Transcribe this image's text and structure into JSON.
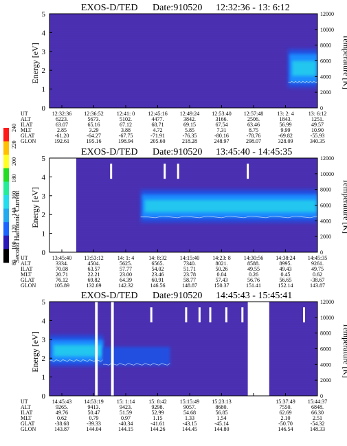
{
  "colors": {
    "background": "#4a2fb0",
    "mid_blue": "#2050e0",
    "bright_blue": "#1a8cff",
    "cyan": "#22c6ee",
    "trace": "#d8e4f0"
  },
  "colorbar": {
    "label": "Second Harmonic Current",
    "ticks": [
      "240",
      "220",
      "200",
      "180",
      "160",
      "140",
      "120",
      "100",
      "80"
    ],
    "colors": [
      "#ff1a1a",
      "#ffc000",
      "#ffff22",
      "#22dd22",
      "#22ee99",
      "#22ddee",
      "#22aaee",
      "#1a66ff",
      "#2a1ab8",
      "#000000"
    ]
  },
  "panels": [
    {
      "title": "EXOS-D/TED",
      "date": "Date:910520",
      "range": "12:32:36 - 13: 6:12",
      "ylabel": "Energy [eV]",
      "y2label": "Temperature [K]",
      "yticks": [
        "0",
        "1",
        "2",
        "3",
        "4",
        "5"
      ],
      "y2ticks": [
        "0",
        "2000",
        "4000",
        "6000",
        "8000",
        "10000",
        "12000"
      ],
      "rows": {
        "ut": [
          "12:32:36",
          "12:36:52",
          "12:41: 0",
          "12:45:16",
          "12:49:24",
          "12:53:40",
          "12:57:48",
          "13: 2: 4",
          "13: 6:12"
        ],
        "alt": [
          "6223.",
          "5673.",
          "5102.",
          "4477.",
          "3842.",
          "3166.",
          "2506.",
          "1843.",
          "1251."
        ],
        "ilat": [
          "63.07",
          "65.16",
          "67.12",
          "68.71",
          "69.15",
          "67.54",
          "63.46",
          "56.99",
          "49.57"
        ],
        "mlt": [
          "2.85",
          "3.29",
          "3.88",
          "4.72",
          "5.85",
          "7.31",
          "8.75",
          "9.99",
          "10.90"
        ],
        "glat": [
          "-61.20",
          "-64.27",
          "-67.75",
          "-71.91",
          "-76.35",
          "-80.16",
          "-78.76",
          "-69.82",
          "-55.93"
        ],
        "glon": [
          "192.61",
          "195.16",
          "198.94",
          "205.60",
          "218.28",
          "248.97",
          "298.07",
          "328.09",
          "340.35"
        ]
      }
    },
    {
      "title": "EXOS-D/TED",
      "date": "Date:910520",
      "range": "13:45:40 - 14:45:35",
      "ylabel": "Energy [eV]",
      "y2label": "Temperature [K]",
      "yticks": [
        "0",
        "1",
        "2",
        "3",
        "4",
        "5"
      ],
      "y2ticks": [
        "0",
        "2000",
        "4000",
        "6000",
        "8000",
        "10000",
        "12000"
      ],
      "rows": {
        "ut": [
          "13:45:40",
          "13:53:12",
          "14: 1: 4",
          "14: 8:32",
          "14:15:40",
          "14:23: 8",
          "14:30:56",
          "14:38:24",
          "14:45:35"
        ],
        "alt": [
          "3334.",
          "4504.",
          "5625.",
          "6565.",
          "7340.",
          "8021.",
          "8588.",
          "8995.",
          "9261."
        ],
        "ilat": [
          "70.08",
          "63.57",
          "57.77",
          "54.02",
          "51.71",
          "50.26",
          "49.55",
          "49.43",
          "49.75"
        ],
        "mlt": [
          "20.71",
          "22.21",
          "23.00",
          "23.46",
          "23.78",
          "0.04",
          "0.26",
          "0.45",
          "0.62"
        ],
        "glat": [
          "76.12",
          "69.82",
          "64.39",
          "60.91",
          "58.77",
          "57.43",
          "56.76",
          "56.65",
          "-38.67"
        ],
        "glon": [
          "105.89",
          "132.69",
          "142.32",
          "146.56",
          "148.87",
          "150.37",
          "151.41",
          "152.14",
          "143.87"
        ]
      }
    },
    {
      "title": "EXOS-D/TED",
      "date": "Date:910520",
      "range": "14:45:43 - 15:45:41",
      "ylabel": "Energy [eV]",
      "y2label": "Temperature [K]",
      "yticks": [
        "0",
        "1",
        "2",
        "3",
        "4",
        "5"
      ],
      "y2ticks": [
        "0",
        "2000",
        "4000",
        "6000",
        "8000",
        "10000",
        "12000"
      ],
      "rows": {
        "ut": [
          "14:45:43",
          "14:53:19",
          "15: 1:14",
          "15: 8:42",
          "15:15:49",
          "15:23:13",
          "",
          "15:37:49",
          "15:44:37"
        ],
        "alt": [
          "9265.",
          "9413.",
          "9423.",
          "9298.",
          "9057.",
          "8680.",
          "",
          "7550.",
          "6848."
        ],
        "ilat": [
          "49.76",
          "50.47",
          "51.59",
          "52.99",
          "54.68",
          "56.85",
          "",
          "62.69",
          "66.30"
        ],
        "mlt": [
          "0.62",
          "0.79",
          "0.97",
          "1.15",
          "1.33",
          "1.54",
          "",
          "2.10",
          "2.51"
        ],
        "glat": [
          "-38.68",
          "-39.33",
          "-40.34",
          "-41.61",
          "-43.15",
          "-45.14",
          "",
          "-50.70",
          "-54.32"
        ],
        "glon": [
          "143.87",
          "144.04",
          "144.15",
          "144.26",
          "144.45",
          "144.80",
          "",
          "146.54",
          "148.33"
        ]
      }
    }
  ],
  "row_labels": [
    "UT",
    "ALT",
    "ILAT",
    "MLT",
    "GLAT",
    "GLON"
  ],
  "chart_data": [
    {
      "type": "heatmap",
      "title": "EXOS-D/TED Date:910520 12:32:36 - 13: 6:12",
      "xlabel": "UT",
      "ylabel": "Energy [eV]",
      "y2label": "Temperature [K]",
      "ylim": [
        0,
        5
      ],
      "y2lim": [
        0,
        12000
      ],
      "x_ticks": [
        "12:32:36",
        "12:36:52",
        "12:41: 0",
        "12:45:16",
        "12:49:24",
        "12:53:40",
        "12:57:48",
        "13: 2: 4",
        "13: 6:12"
      ],
      "features": [
        {
          "kind": "band",
          "x_from": 0.89,
          "x_to": 1.0,
          "energy_center": 2.1,
          "energy_width": 1.6,
          "level": "high"
        }
      ],
      "data_gaps": [],
      "spikes": []
    },
    {
      "type": "heatmap",
      "title": "EXOS-D/TED Date:910520 13:45:40 - 14:45:35",
      "xlabel": "UT",
      "ylabel": "Energy [eV]",
      "y2label": "Temperature [K]",
      "ylim": [
        0,
        5
      ],
      "y2lim": [
        0,
        12000
      ],
      "x_ticks": [
        "13:45:40",
        "13:53:12",
        "14: 1: 4",
        "14: 8:32",
        "14:15:40",
        "14:23: 8",
        "14:30:56",
        "14:38:24",
        "14:45:35"
      ],
      "features": [
        {
          "kind": "band",
          "x_from": 0.34,
          "x_to": 1.0,
          "energy_center": 2.45,
          "energy_width": 1.3,
          "level": "high"
        }
      ],
      "data_gaps": [
        [
          0.0,
          0.1
        ]
      ],
      "spikes": [
        0.23,
        0.43,
        0.48,
        0.74
      ]
    },
    {
      "type": "heatmap",
      "title": "EXOS-D/TED Date:910520 14:45:43 - 15:45:41",
      "xlabel": "UT",
      "ylabel": "Energy [eV]",
      "y2label": "Temperature [K]",
      "ylim": [
        0,
        5
      ],
      "y2lim": [
        0,
        12000
      ],
      "x_ticks": [
        "14:45:43",
        "14:53:19",
        "15: 1:14",
        "15: 8:42",
        "15:15:49",
        "15:23:13",
        "",
        "15:37:49",
        "15:44:37"
      ],
      "features": [
        {
          "kind": "band",
          "x_from": 0.0,
          "x_to": 0.2,
          "energy_center": 2.4,
          "energy_width": 1.2,
          "level": "high"
        },
        {
          "kind": "band",
          "x_from": 0.2,
          "x_to": 0.45,
          "energy_center": 2.1,
          "energy_width": 1.0,
          "level": "mid"
        }
      ],
      "data_gaps": [
        [
          0.17,
          0.18
        ],
        [
          0.23,
          0.24
        ],
        [
          0.74,
          0.82
        ]
      ],
      "spikes": [
        0.38,
        0.51,
        0.56,
        0.6,
        0.66,
        0.72,
        0.95
      ]
    }
  ]
}
